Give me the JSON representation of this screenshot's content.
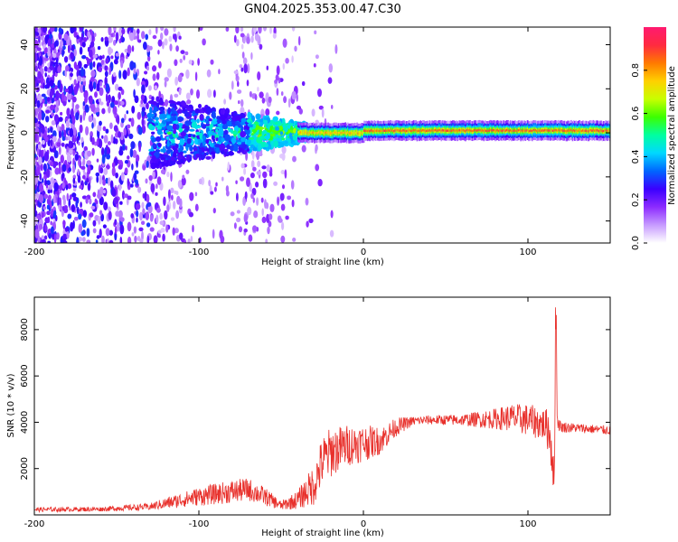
{
  "title": "GN04.2025.353.00.47.C30",
  "chart_data": [
    {
      "type": "heatmap",
      "xlabel": "Height of straight line (km)",
      "ylabel": "Frequency (Hz)",
      "xlim": [
        -200,
        150
      ],
      "ylim": [
        -50,
        48
      ],
      "xticks": [
        -200,
        -100,
        0,
        100
      ],
      "yticks": [
        -40,
        -20,
        0,
        20,
        40
      ],
      "colorbar": {
        "label": "Normalized spectral amplitude",
        "range": [
          0,
          1
        ],
        "ticks": [
          "0.0",
          "0.2",
          "0.4",
          "0.6",
          "0.8"
        ],
        "colors": [
          "#ffffff",
          "#c79bff",
          "#8c2bff",
          "#3a00ff",
          "#0066ff",
          "#00d8ff",
          "#00ffa0",
          "#3cff00",
          "#c8ff00",
          "#ffd000",
          "#ff7a00",
          "#ff2a40",
          "#ff1a70"
        ]
      },
      "signal_segments": [
        {
          "x0": -130,
          "x1": -40,
          "freq": 0,
          "amplitude": 0.35
        },
        {
          "x0": -40,
          "x1": 0,
          "freq": 0,
          "amplitude": 0.75
        },
        {
          "x0": 0,
          "x1": 150,
          "freq": 1,
          "amplitude": 0.85
        }
      ],
      "noise_region": {
        "x0": -200,
        "x1": -40,
        "amplitude": 0.18
      }
    },
    {
      "type": "line",
      "xlabel": "Height of straight line (km)",
      "ylabel": "SNR (10 * v/v)",
      "xlim": [
        -200,
        150
      ],
      "ylim": [
        0,
        9400
      ],
      "xticks": [
        -200,
        -100,
        0,
        100
      ],
      "yticks": [
        2000,
        4000,
        6000,
        8000
      ],
      "color": "#e8302b",
      "envelope": {
        "x": [
          -200,
          -160,
          -130,
          -120,
          -100,
          -80,
          -70,
          -60,
          -50,
          -40,
          -30,
          -25,
          -20,
          -10,
          0,
          10,
          20,
          30,
          40,
          60,
          80,
          90,
          100,
          105,
          110,
          113,
          115,
          116,
          117,
          118,
          120,
          130,
          140,
          150
        ],
        "y": [
          230,
          250,
          350,
          500,
          800,
          1000,
          1100,
          800,
          400,
          650,
          1300,
          2300,
          2700,
          3000,
          3100,
          3200,
          3800,
          4050,
          4100,
          4100,
          4150,
          4200,
          4100,
          4000,
          3900,
          3600,
          2500,
          1300,
          7500,
          4000,
          3800,
          3750,
          3700,
          3650
        ],
        "noise": [
          100,
          100,
          150,
          250,
          400,
          500,
          500,
          400,
          200,
          400,
          900,
          1100,
          1100,
          900,
          800,
          600,
          400,
          200,
          200,
          250,
          450,
          600,
          700,
          700,
          700,
          1000,
          1200,
          600,
          2000,
          300,
          250,
          200,
          200,
          200
        ]
      }
    }
  ]
}
